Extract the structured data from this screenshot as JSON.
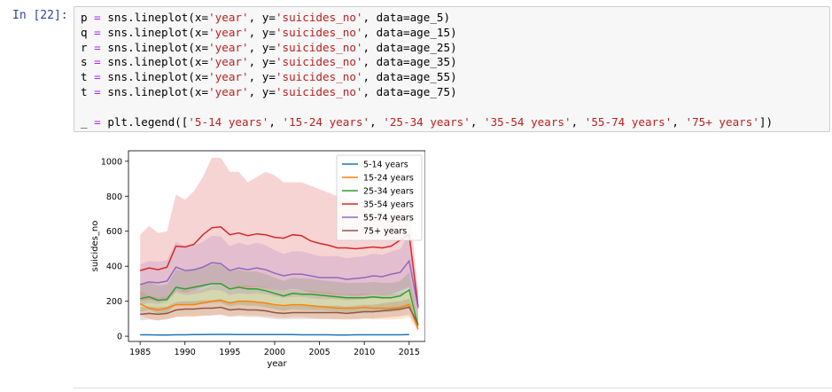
{
  "cell": {
    "prompt": "In [22]:",
    "code_lines": [
      [
        {
          "t": "var",
          "s": "p "
        },
        {
          "t": "op",
          "s": "="
        },
        {
          "t": "var",
          "s": " sns.lineplot(x="
        },
        {
          "t": "str",
          "s": "'year'"
        },
        {
          "t": "var",
          "s": ", y="
        },
        {
          "t": "str",
          "s": "'suicides_no'"
        },
        {
          "t": "var",
          "s": ", data=age_5)"
        }
      ],
      [
        {
          "t": "var",
          "s": "q "
        },
        {
          "t": "op",
          "s": "="
        },
        {
          "t": "var",
          "s": " sns.lineplot(x="
        },
        {
          "t": "str",
          "s": "'year'"
        },
        {
          "t": "var",
          "s": ", y="
        },
        {
          "t": "str",
          "s": "'suicides_no'"
        },
        {
          "t": "var",
          "s": ", data=age_15)"
        }
      ],
      [
        {
          "t": "var",
          "s": "r "
        },
        {
          "t": "op",
          "s": "="
        },
        {
          "t": "var",
          "s": " sns.lineplot(x="
        },
        {
          "t": "str",
          "s": "'year'"
        },
        {
          "t": "var",
          "s": ", y="
        },
        {
          "t": "str",
          "s": "'suicides_no'"
        },
        {
          "t": "var",
          "s": ", data=age_25)"
        }
      ],
      [
        {
          "t": "var",
          "s": "s "
        },
        {
          "t": "op",
          "s": "="
        },
        {
          "t": "var",
          "s": " sns.lineplot(x="
        },
        {
          "t": "str",
          "s": "'year'"
        },
        {
          "t": "var",
          "s": ", y="
        },
        {
          "t": "str",
          "s": "'suicides_no'"
        },
        {
          "t": "var",
          "s": ", data=age_35)"
        }
      ],
      [
        {
          "t": "var",
          "s": "t "
        },
        {
          "t": "op",
          "s": "="
        },
        {
          "t": "var",
          "s": " sns.lineplot(x="
        },
        {
          "t": "str",
          "s": "'year'"
        },
        {
          "t": "var",
          "s": ", y="
        },
        {
          "t": "str",
          "s": "'suicides_no'"
        },
        {
          "t": "var",
          "s": ", data=age_55)"
        }
      ],
      [
        {
          "t": "var",
          "s": "t "
        },
        {
          "t": "op",
          "s": "="
        },
        {
          "t": "var",
          "s": " sns.lineplot(x="
        },
        {
          "t": "str",
          "s": "'year'"
        },
        {
          "t": "var",
          "s": ", y="
        },
        {
          "t": "str",
          "s": "'suicides_no'"
        },
        {
          "t": "var",
          "s": ", data=age_75)"
        }
      ],
      [],
      [
        {
          "t": "var",
          "s": "_ "
        },
        {
          "t": "op",
          "s": "="
        },
        {
          "t": "var",
          "s": " plt.legend(["
        },
        {
          "t": "str",
          "s": "'5-14 years'"
        },
        {
          "t": "var",
          "s": ", "
        },
        {
          "t": "str",
          "s": "'15-24 years'"
        },
        {
          "t": "var",
          "s": ", "
        },
        {
          "t": "str",
          "s": "'25-34 years'"
        },
        {
          "t": "var",
          "s": ", "
        },
        {
          "t": "str",
          "s": "'35-54 years'"
        },
        {
          "t": "var",
          "s": ", "
        },
        {
          "t": "str",
          "s": "'55-74 years'"
        },
        {
          "t": "var",
          "s": ", "
        },
        {
          "t": "str",
          "s": "'75+ years'"
        },
        {
          "t": "var",
          "s": "])"
        }
      ]
    ]
  },
  "chart_data": {
    "type": "line",
    "xlabel": "year",
    "ylabel": "suicides_no",
    "xlim": [
      1983.7,
      2016.8
    ],
    "ylim": [
      -30,
      1060
    ],
    "xticks": [
      1985,
      1990,
      1995,
      2000,
      2005,
      2010,
      2015
    ],
    "yticks": [
      0,
      200,
      400,
      600,
      800,
      1000
    ],
    "legend_position": "upper-right",
    "x": [
      1985,
      1986,
      1987,
      1988,
      1989,
      1990,
      1991,
      1992,
      1993,
      1994,
      1995,
      1996,
      1997,
      1998,
      1999,
      2000,
      2001,
      2002,
      2003,
      2004,
      2005,
      2006,
      2007,
      2008,
      2009,
      2010,
      2011,
      2012,
      2013,
      2014,
      2015,
      2016
    ],
    "series": [
      {
        "name": "5-14 years",
        "color": "#1f77b4",
        "values": [
          8,
          8,
          7,
          7,
          8,
          8,
          9,
          9,
          10,
          10,
          10,
          9,
          9,
          9,
          9,
          9,
          9,
          9,
          8,
          8,
          8,
          8,
          7,
          7,
          8,
          8,
          8,
          8,
          8,
          8,
          9,
          null
        ],
        "lower": [
          6,
          6,
          5,
          5,
          6,
          6,
          7,
          7,
          8,
          8,
          8,
          7,
          7,
          7,
          7,
          7,
          7,
          7,
          6,
          6,
          6,
          6,
          5,
          5,
          6,
          6,
          6,
          6,
          6,
          6,
          7,
          null
        ],
        "upper": [
          11,
          11,
          10,
          10,
          11,
          11,
          12,
          12,
          13,
          13,
          13,
          12,
          12,
          12,
          12,
          12,
          12,
          12,
          11,
          11,
          11,
          11,
          10,
          10,
          11,
          11,
          11,
          11,
          11,
          11,
          12,
          null
        ]
      },
      {
        "name": "15-24 years",
        "color": "#ff7f0e",
        "values": [
          185,
          160,
          150,
          160,
          180,
          180,
          180,
          190,
          200,
          205,
          190,
          200,
          200,
          195,
          190,
          180,
          175,
          180,
          180,
          175,
          170,
          165,
          160,
          160,
          160,
          165,
          160,
          160,
          160,
          165,
          180,
          40
        ],
        "lower": [
          120,
          100,
          90,
          100,
          110,
          110,
          110,
          115,
          120,
          125,
          115,
          120,
          120,
          118,
          115,
          110,
          105,
          110,
          110,
          105,
          100,
          98,
          95,
          95,
          95,
          98,
          95,
          95,
          95,
          98,
          110,
          20
        ],
        "upper": [
          260,
          230,
          220,
          230,
          260,
          260,
          260,
          270,
          290,
          300,
          280,
          290,
          290,
          285,
          280,
          265,
          260,
          265,
          265,
          260,
          255,
          250,
          240,
          240,
          240,
          245,
          240,
          240,
          240,
          245,
          265,
          70
        ]
      },
      {
        "name": "25-34 years",
        "color": "#2ca02c",
        "values": [
          215,
          225,
          205,
          210,
          280,
          270,
          280,
          290,
          300,
          300,
          270,
          280,
          270,
          270,
          260,
          245,
          230,
          245,
          240,
          240,
          235,
          230,
          225,
          220,
          220,
          220,
          225,
          220,
          220,
          230,
          265,
          60
        ],
        "lower": [
          140,
          150,
          130,
          135,
          180,
          175,
          180,
          185,
          190,
          190,
          170,
          180,
          175,
          175,
          165,
          155,
          145,
          155,
          150,
          150,
          148,
          145,
          140,
          138,
          138,
          138,
          140,
          138,
          138,
          145,
          165,
          30
        ],
        "upper": [
          300,
          310,
          290,
          295,
          380,
          370,
          385,
          400,
          410,
          410,
          370,
          380,
          370,
          370,
          355,
          335,
          315,
          335,
          330,
          330,
          320,
          315,
          310,
          305,
          305,
          305,
          310,
          305,
          305,
          315,
          365,
          110
        ]
      },
      {
        "name": "35-54 years",
        "color": "#d62728",
        "values": [
          375,
          390,
          380,
          395,
          515,
          510,
          525,
          580,
          620,
          625,
          580,
          590,
          575,
          585,
          580,
          565,
          560,
          580,
          575,
          545,
          530,
          520,
          505,
          505,
          500,
          505,
          510,
          505,
          515,
          550,
          580,
          170
        ],
        "lower": [
          200,
          210,
          200,
          210,
          260,
          250,
          260,
          280,
          300,
          300,
          280,
          285,
          275,
          280,
          275,
          265,
          260,
          270,
          265,
          250,
          245,
          240,
          235,
          235,
          230,
          235,
          240,
          235,
          240,
          260,
          280,
          90
        ],
        "upper": [
          580,
          630,
          590,
          600,
          810,
          780,
          830,
          910,
          1020,
          1020,
          940,
          940,
          880,
          910,
          940,
          920,
          880,
          880,
          880,
          860,
          840,
          820,
          800,
          790,
          760,
          740,
          720,
          700,
          700,
          720,
          760,
          260
        ]
      },
      {
        "name": "55-74 years",
        "color": "#9467bd",
        "values": [
          295,
          310,
          305,
          315,
          395,
          375,
          380,
          395,
          420,
          415,
          375,
          390,
          380,
          390,
          380,
          360,
          345,
          355,
          355,
          345,
          335,
          335,
          335,
          325,
          330,
          335,
          345,
          340,
          355,
          365,
          430,
          160
        ],
        "lower": [
          180,
          190,
          185,
          195,
          250,
          235,
          240,
          250,
          265,
          262,
          235,
          245,
          240,
          245,
          240,
          228,
          220,
          225,
          225,
          218,
          212,
          212,
          212,
          205,
          208,
          212,
          218,
          215,
          225,
          232,
          275,
          100
        ],
        "upper": [
          410,
          430,
          425,
          435,
          540,
          515,
          520,
          540,
          575,
          570,
          515,
          535,
          520,
          535,
          520,
          492,
          470,
          485,
          485,
          472,
          458,
          458,
          458,
          445,
          452,
          458,
          472,
          465,
          485,
          498,
          585,
          220
        ]
      },
      {
        "name": "75+ years",
        "color": "#8c564b",
        "values": [
          125,
          130,
          125,
          130,
          150,
          155,
          155,
          160,
          160,
          165,
          150,
          155,
          150,
          150,
          145,
          135,
          130,
          135,
          135,
          135,
          135,
          135,
          135,
          130,
          135,
          140,
          140,
          145,
          150,
          155,
          165,
          70
        ],
        "lower": [
          90,
          95,
          90,
          95,
          110,
          115,
          115,
          118,
          118,
          122,
          110,
          115,
          110,
          110,
          106,
          98,
          95,
          98,
          98,
          98,
          98,
          98,
          98,
          95,
          98,
          102,
          102,
          106,
          110,
          114,
          122,
          45
        ],
        "upper": [
          165,
          170,
          165,
          170,
          195,
          200,
          200,
          205,
          205,
          212,
          195,
          200,
          195,
          195,
          188,
          175,
          168,
          175,
          175,
          175,
          175,
          175,
          175,
          168,
          175,
          180,
          180,
          188,
          195,
          200,
          215,
          95
        ]
      }
    ]
  }
}
